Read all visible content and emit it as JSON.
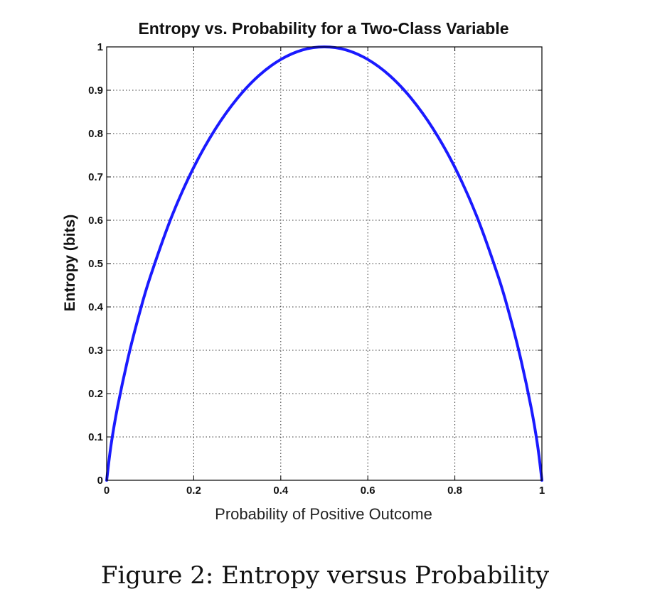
{
  "chart_data": {
    "type": "line",
    "title": "Entropy vs. Probability for a Two-Class Variable",
    "xlabel": "Probability of Positive Outcome",
    "ylabel": "Entropy (bits)",
    "xlim": [
      0,
      1
    ],
    "ylim": [
      0,
      1
    ],
    "x_ticks": [
      0,
      0.2,
      0.4,
      0.6,
      0.8,
      1
    ],
    "x_tick_labels": [
      "0",
      "0.2",
      "0.4",
      "0.6",
      "0.8",
      "1"
    ],
    "y_ticks": [
      0,
      0.1,
      0.2,
      0.3,
      0.4,
      0.5,
      0.6,
      0.7,
      0.8,
      0.9,
      1
    ],
    "y_tick_labels": [
      "0",
      "0.1",
      "0.2",
      "0.3",
      "0.4",
      "0.5",
      "0.6",
      "0.7",
      "0.8",
      "0.9",
      "1"
    ],
    "grid": true,
    "grid_style": "dotted",
    "series": [
      {
        "color": "#1a1aff",
        "x": [
          0,
          0.01,
          0.025,
          0.05,
          0.075,
          0.1,
          0.15,
          0.2,
          0.25,
          0.3,
          0.35,
          0.4,
          0.45,
          0.5,
          0.55,
          0.6,
          0.65,
          0.7,
          0.75,
          0.8,
          0.85,
          0.9,
          0.925,
          0.95,
          0.975,
          0.99,
          1
        ],
        "y": [
          0,
          0.081,
          0.169,
          0.286,
          0.384,
          0.469,
          0.61,
          0.722,
          0.811,
          0.881,
          0.934,
          0.971,
          0.993,
          1,
          0.993,
          0.971,
          0.934,
          0.881,
          0.811,
          0.722,
          0.61,
          0.469,
          0.384,
          0.286,
          0.169,
          0.081,
          0
        ]
      }
    ]
  },
  "caption": "Figure 2: Entropy versus Probability"
}
